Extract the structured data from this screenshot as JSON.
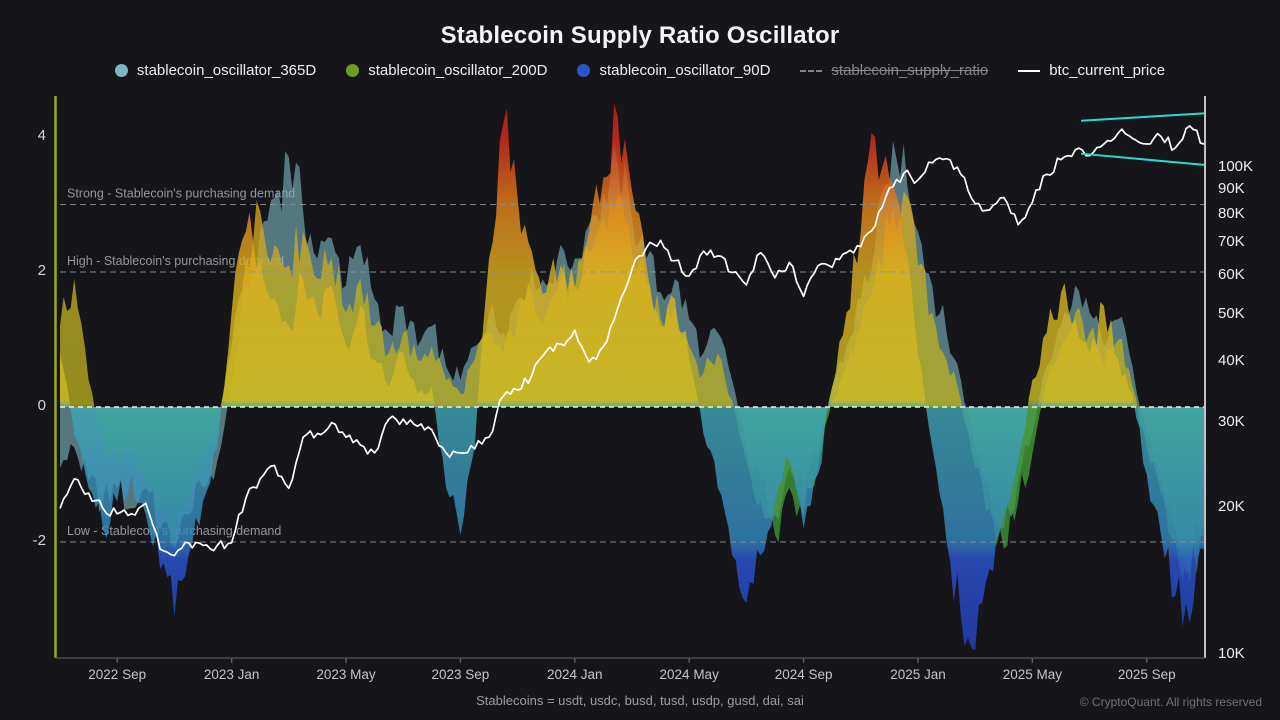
{
  "title": "Stablecoin Supply Ratio Oscillator",
  "footnote": "Stablecoins = usdt, usdc, busd, tusd, usdp, gusd, dai, sai",
  "copyright": "© CryptoQuant. All rights reserved",
  "colors": {
    "background": "#16161a",
    "osc_365d": "#7db4c0",
    "osc_200d": "#6f9a23",
    "osc_90d": "#2b55c8",
    "heat_orange": "#e8851b",
    "heat_red": "#d01f1f",
    "btc_line": "#ffffff",
    "channel_annotation": "#2bd9ce",
    "left_spine": "#9aa81e",
    "right_spine": "#eeeeee",
    "threshold_line": "#8b9096",
    "zero_line": "#eceef0"
  },
  "legend": {
    "items": [
      {
        "label": "stablecoin_oscillator_365D",
        "marker": "circle",
        "color": "#7db4c0",
        "disabled": false
      },
      {
        "label": "stablecoin_oscillator_200D",
        "marker": "circle",
        "color": "#6f9a23",
        "disabled": false
      },
      {
        "label": "stablecoin_oscillator_90D",
        "marker": "circle",
        "color": "#2b55c8",
        "disabled": false
      },
      {
        "label": "stablecoin_supply_ratio",
        "marker": "dashdot",
        "color": "#83868c",
        "disabled": true
      },
      {
        "label": "btc_current_price",
        "marker": "line",
        "color": "#ffffff",
        "disabled": false
      }
    ]
  },
  "chart_data": {
    "type": "area+line",
    "x_labels": [
      "2022 Sep",
      "2023 Jan",
      "2023 May",
      "2023 Sep",
      "2024 Jan",
      "2024 May",
      "2024 Sep",
      "2025 Jan",
      "2025 May",
      "2025 Sep"
    ],
    "x_label_indices": [
      4,
      12,
      20,
      28,
      36,
      44,
      52,
      60,
      68,
      76
    ],
    "left_axis": {
      "ticks": [
        4,
        2,
        0,
        -2
      ],
      "range": [
        -3.8,
        4.55
      ],
      "grid": false
    },
    "right_axis": {
      "ticks_k": [
        100,
        90,
        80,
        70,
        60,
        50,
        40,
        30,
        20,
        10
      ],
      "scale": "log",
      "unit": "K"
    },
    "thresholds": [
      {
        "label": "Strong - Stablecoin's purchasing demand",
        "value": 3
      },
      {
        "label": "High - Stablecoin's purchasing demand",
        "value": 2
      },
      {
        "label": "Low - Stablecoin's purchasing demand",
        "value": -2
      }
    ],
    "zero_line_value": 0,
    "annotation_channel": {
      "start_index": 71.4,
      "end_index": 80,
      "top_start_k": 125,
      "top_end_k": 129.5,
      "bottom_start_k": 107,
      "bottom_end_k": 101.5
    },
    "series": {
      "osc365": {
        "name": "stablecoin_oscillator_365D",
        "values": [
          -0.9,
          -0.6,
          -1.1,
          -1.4,
          -1.2,
          -1.5,
          -1.2,
          -1.8,
          -2.1,
          -1.6,
          -1.2,
          -0.8,
          0.3,
          1.8,
          2.6,
          3.1,
          3.7,
          2.9,
          2.2,
          2.5,
          1.8,
          2.4,
          1.6,
          1.1,
          1.5,
          0.9,
          1.2,
          0.6,
          0.4,
          0.9,
          1.4,
          1.1,
          1.6,
          2.1,
          1.8,
          2.4,
          2.2,
          2.7,
          3.2,
          3.6,
          2.8,
          2.2,
          1.7,
          1.9,
          1.3,
          0.8,
          1.1,
          0.4,
          -0.6,
          -1.1,
          -1.6,
          -0.9,
          -1.3,
          -0.7,
          0.3,
          0.9,
          1.6,
          2.4,
          3.3,
          3.9,
          2.6,
          1.8,
          1.1,
          0.4,
          -0.6,
          -1.2,
          -1.8,
          -1.1,
          -0.4,
          0.6,
          1.2,
          1.8,
          1.4,
          0.9,
          1.3,
          0.6,
          -0.4,
          -1.1,
          -1.8,
          -2.4,
          -1.6
        ]
      },
      "osc200": {
        "name": "stablecoin_oscillator_200D",
        "values": [
          1.2,
          1.9,
          0.4,
          -0.5,
          -0.9,
          -0.6,
          -1.1,
          -1.5,
          -1.9,
          -1.3,
          -0.9,
          -0.4,
          0.9,
          2.2,
          2.9,
          2.4,
          2.1,
          2.6,
          1.9,
          2.2,
          1.4,
          1.9,
          1.2,
          0.8,
          1.1,
          0.7,
          0.9,
          0.4,
          0.2,
          0.7,
          1.1,
          0.8,
          1.3,
          1.7,
          1.4,
          1.9,
          1.7,
          2.3,
          2.8,
          3.1,
          2.3,
          1.8,
          1.3,
          1.5,
          0.9,
          0.5,
          0.8,
          0.1,
          -0.8,
          -1.4,
          -1.9,
          -1.2,
          -1.6,
          -0.9,
          0.1,
          0.6,
          1.2,
          1.9,
          2.7,
          3.2,
          2.1,
          1.4,
          0.7,
          0.1,
          -0.9,
          -1.5,
          -2.1,
          -1.4,
          -0.7,
          0.4,
          0.9,
          1.4,
          1.1,
          0.6,
          1.0,
          0.3,
          -0.6,
          -1.3,
          -2.0,
          -2.6,
          -1.9
        ]
      },
      "osc90": {
        "name": "stablecoin_oscillator_90D",
        "values": [
          0.8,
          -0.4,
          -1.2,
          -1.8,
          -1.4,
          -1.0,
          -1.6,
          -2.4,
          -3.1,
          -2.2,
          -1.4,
          -0.6,
          1.4,
          2.6,
          2.2,
          1.6,
          1.2,
          1.9,
          1.4,
          1.8,
          0.9,
          1.5,
          0.7,
          0.3,
          0.8,
          0.2,
          0.3,
          -1.2,
          -1.9,
          -0.6,
          2.2,
          4.2,
          3.1,
          2.3,
          1.7,
          2.1,
          1.8,
          2.6,
          3.4,
          4.3,
          3.2,
          2.1,
          1.2,
          1.6,
          0.7,
          -0.4,
          -1.2,
          -2.2,
          -2.9,
          -2.2,
          -1.4,
          -0.8,
          -1.8,
          -1.0,
          0.3,
          1.4,
          2.6,
          4.0,
          3.4,
          2.4,
          0.8,
          -0.6,
          -2.0,
          -3.1,
          -3.6,
          -2.4,
          -1.6,
          -0.8,
          0.4,
          1.1,
          1.7,
          1.3,
          0.8,
          1.5,
          0.7,
          0.2,
          -1.0,
          -1.9,
          -2.8,
          -3.2,
          -2.1
        ]
      },
      "btc": {
        "name": "btc_current_price",
        "unit": "K",
        "values": [
          20,
          23,
          21.5,
          20,
          19.5,
          19.5,
          20.5,
          16.5,
          16,
          17,
          16.8,
          16.8,
          17,
          21,
          23,
          24.5,
          22,
          28,
          28.5,
          30,
          28,
          27,
          26,
          30.5,
          30.5,
          29.5,
          29,
          26,
          26,
          26.5,
          28,
          34,
          35,
          37.5,
          42,
          43.5,
          46.5,
          40,
          43,
          51.5,
          62,
          68.5,
          71,
          64.5,
          60,
          67.5,
          66,
          61,
          57.5,
          67,
          59.5,
          64,
          54.5,
          63,
          62.5,
          67,
          69,
          76,
          91,
          97.5,
          94.5,
          102.5,
          104.5,
          97,
          84.5,
          82,
          87,
          76.5,
          85,
          97,
          104,
          109,
          106,
          112,
          118,
          115,
          112,
          116,
          110,
          122,
          112
        ]
      }
    }
  }
}
